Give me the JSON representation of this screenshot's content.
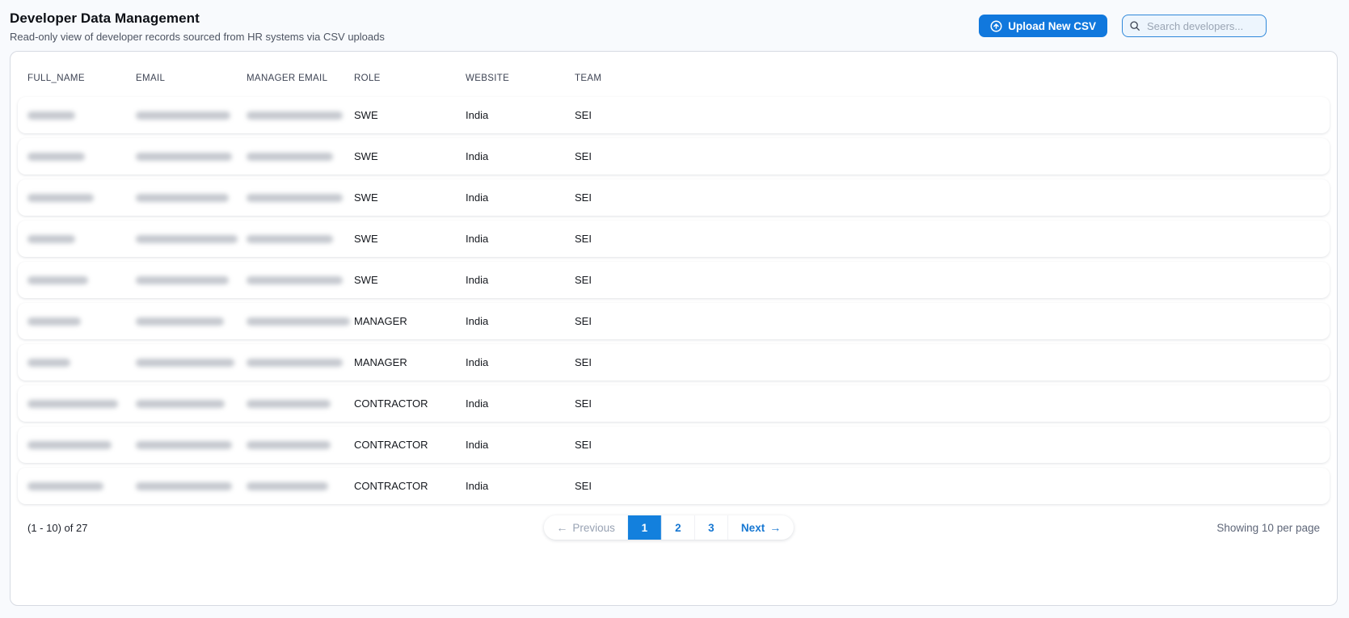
{
  "page": {
    "title": "Developer Data Management",
    "subtitle": "Read-only view of developer records sourced from HR systems via CSV uploads"
  },
  "toolbar": {
    "upload_button": "Upload New CSV",
    "search_placeholder": "Search developers...",
    "upload_icon": "arrow-up-circle",
    "search_icon": "magnifier"
  },
  "table": {
    "columns": [
      "FULL_NAME",
      "EMAIL",
      "MANAGER EMAIL",
      "ROLE",
      "WEBSITE",
      "TEAM"
    ],
    "redacted_columns": [
      "FULL_NAME",
      "EMAIL",
      "MANAGER EMAIL"
    ],
    "rows": [
      {
        "full_name": "[redacted]",
        "email": "[redacted]",
        "manager_email": "[redacted]",
        "role": "SWE",
        "website": "India",
        "team": "SEI",
        "redact_widths": [
          59,
          117,
          119
        ]
      },
      {
        "full_name": "[redacted]",
        "email": "[redacted]",
        "manager_email": "[redacted]",
        "role": "SWE",
        "website": "India",
        "team": "SEI",
        "redact_widths": [
          71,
          119,
          107
        ]
      },
      {
        "full_name": "[redacted]",
        "email": "[redacted]",
        "manager_email": "[redacted]",
        "role": "SWE",
        "website": "India",
        "team": "SEI",
        "redact_widths": [
          82,
          115,
          119
        ]
      },
      {
        "full_name": "[redacted]",
        "email": "[redacted]",
        "manager_email": "[redacted]",
        "role": "SWE",
        "website": "India",
        "team": "SEI",
        "redact_widths": [
          59,
          126,
          107
        ]
      },
      {
        "full_name": "[redacted]",
        "email": "[redacted]",
        "manager_email": "[redacted]",
        "role": "SWE",
        "website": "India",
        "team": "SEI",
        "redact_widths": [
          75,
          115,
          119
        ]
      },
      {
        "full_name": "[redacted]",
        "email": "[redacted]",
        "manager_email": "[redacted]",
        "role": "MANAGER",
        "website": "India",
        "team": "SEI",
        "redact_widths": [
          66,
          109,
          128
        ]
      },
      {
        "full_name": "[redacted]",
        "email": "[redacted]",
        "manager_email": "[redacted]",
        "role": "MANAGER",
        "website": "India",
        "team": "SEI",
        "redact_widths": [
          53,
          122,
          119
        ]
      },
      {
        "full_name": "[redacted]",
        "email": "[redacted]",
        "manager_email": "[redacted]",
        "role": "CONTRACTOR",
        "website": "India",
        "team": "SEI",
        "redact_widths": [
          112,
          110,
          104
        ]
      },
      {
        "full_name": "[redacted]",
        "email": "[redacted]",
        "manager_email": "[redacted]",
        "role": "CONTRACTOR",
        "website": "India",
        "team": "SEI",
        "redact_widths": [
          104,
          119,
          104
        ]
      },
      {
        "full_name": "[redacted]",
        "email": "[redacted]",
        "manager_email": "[redacted]",
        "role": "CONTRACTOR",
        "website": "India",
        "team": "SEI",
        "redact_widths": [
          94,
          119,
          101
        ]
      }
    ]
  },
  "pagination": {
    "range_label": "(1 - 10) of 27",
    "previous_label": "Previous",
    "previous_arrow": "←",
    "pages": [
      "1",
      "2",
      "3"
    ],
    "active_page": "1",
    "next_label": "Next",
    "next_arrow": "→",
    "per_page_label": "Showing 10 per page"
  },
  "colors": {
    "accent_blue": "#1178dd",
    "active_page_blue": "#1380dd",
    "search_border_blue": "#2f88da",
    "page_background": "#f8fafd",
    "card_border": "#d6dae2",
    "muted_text": "#5e6678",
    "disabled_text": "#98a2b3"
  }
}
